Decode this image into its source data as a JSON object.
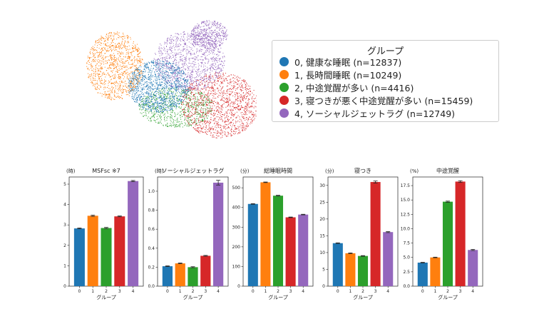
{
  "legend": {
    "title": "グループ",
    "items": [
      {
        "label": "0, 健康な睡眠 (n=12837)",
        "color": "#1f77b4"
      },
      {
        "label": "1, 長時間睡眠 (n=10249)",
        "color": "#ff7f0e"
      },
      {
        "label": "2, 中途覚醒が多い (n=4416)",
        "color": "#2ca02c"
      },
      {
        "label": "3, 寝つきが悪く中途覚醒が多い (n=15459)",
        "color": "#d62728"
      },
      {
        "label": "4, ソーシャルジェットラグ (n=12749)",
        "color": "#9467bd"
      }
    ]
  },
  "chart_data": [
    {
      "type": "bar",
      "title": "MSFsc ※7",
      "unit": "(時)",
      "xlabel": "グループ",
      "categories": [
        "0",
        "1",
        "2",
        "3",
        "4"
      ],
      "values": [
        2.83,
        3.45,
        2.85,
        3.42,
        5.15
      ],
      "error": [
        0.02,
        0.03,
        0.03,
        0.02,
        0.03
      ],
      "ylim": [
        0,
        5.35
      ],
      "yticks": [
        0,
        1,
        2,
        3,
        4,
        5
      ],
      "colors": [
        "#1f77b4",
        "#ff7f0e",
        "#2ca02c",
        "#d62728",
        "#9467bd"
      ]
    },
    {
      "type": "bar",
      "title": "ソーシャルジェットラグ",
      "unit": "(時)",
      "xlabel": "グループ",
      "categories": [
        "0",
        "1",
        "2",
        "3",
        "4"
      ],
      "values": [
        0.21,
        0.24,
        0.2,
        0.32,
        1.09
      ],
      "error": [
        0.004,
        0.004,
        0.005,
        0.004,
        0.025
      ],
      "ylim": [
        0,
        1.15
      ],
      "yticks": [
        0.0,
        0.2,
        0.4,
        0.6,
        0.8,
        1.0
      ],
      "colors": [
        "#1f77b4",
        "#ff7f0e",
        "#2ca02c",
        "#d62728",
        "#9467bd"
      ]
    },
    {
      "type": "bar",
      "title": "総睡眠時間",
      "unit": "(分)",
      "xlabel": "グループ",
      "categories": [
        "0",
        "1",
        "2",
        "3",
        "4"
      ],
      "values": [
        418,
        528,
        460,
        350,
        364
      ],
      "error": [
        1.5,
        1.5,
        2,
        1.5,
        1.5
      ],
      "ylim": [
        0,
        555
      ],
      "yticks": [
        0,
        100,
        200,
        300,
        400,
        500
      ],
      "colors": [
        "#1f77b4",
        "#ff7f0e",
        "#2ca02c",
        "#d62728",
        "#9467bd"
      ]
    },
    {
      "type": "bar",
      "title": "寝つき",
      "unit": "(分)",
      "xlabel": "グループ",
      "categories": [
        "0",
        "1",
        "2",
        "3",
        "4"
      ],
      "values": [
        12.8,
        9.8,
        9.0,
        31.0,
        16.1
      ],
      "error": [
        0.1,
        0.1,
        0.1,
        0.3,
        0.15
      ],
      "ylim": [
        0,
        32.5
      ],
      "yticks": [
        0,
        5,
        10,
        15,
        20,
        25,
        30
      ],
      "colors": [
        "#1f77b4",
        "#ff7f0e",
        "#2ca02c",
        "#d62728",
        "#9467bd"
      ]
    },
    {
      "type": "bar",
      "title": "中途覚醒",
      "unit": "(%)",
      "xlabel": "グループ",
      "categories": [
        "0",
        "1",
        "2",
        "3",
        "4"
      ],
      "values": [
        4.1,
        5.0,
        14.7,
        18.2,
        6.3
      ],
      "error": [
        0.05,
        0.05,
        0.1,
        0.15,
        0.1
      ],
      "ylim": [
        0,
        19.0
      ],
      "yticks": [
        0.0,
        2.5,
        5.0,
        7.5,
        10.0,
        12.5,
        15.0,
        17.5
      ],
      "colors": [
        "#1f77b4",
        "#ff7f0e",
        "#2ca02c",
        "#d62728",
        "#9467bd"
      ]
    }
  ]
}
